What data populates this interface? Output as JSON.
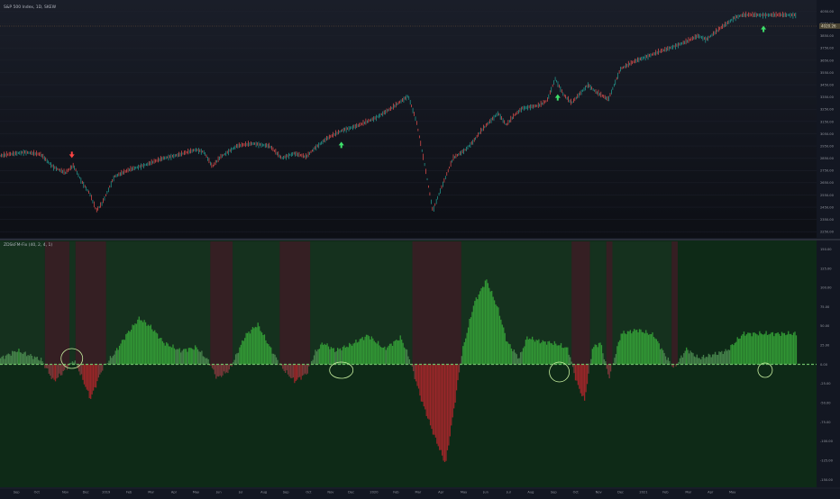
{
  "price_pane": {
    "title": "S&P 500 Index, 1D, SKEW",
    "last_value_label": "4020.26",
    "y_ticks": [
      {
        "v": 4050,
        "label": "4050.00"
      },
      {
        "v": 3950,
        "label": "3950.00"
      },
      {
        "v": 3850,
        "label": "3850.00"
      },
      {
        "v": 3750,
        "label": "3750.00"
      },
      {
        "v": 3650,
        "label": "3650.00"
      },
      {
        "v": 3550,
        "label": "3550.00"
      },
      {
        "v": 3450,
        "label": "3450.00"
      },
      {
        "v": 3350,
        "label": "3350.00"
      },
      {
        "v": 3250,
        "label": "3250.00"
      },
      {
        "v": 3150,
        "label": "3150.00"
      },
      {
        "v": 3050,
        "label": "3050.00"
      },
      {
        "v": 2950,
        "label": "2950.00"
      },
      {
        "v": 2850,
        "label": "2850.00"
      },
      {
        "v": 2750,
        "label": "2750.00"
      },
      {
        "v": 2650,
        "label": "2650.00"
      },
      {
        "v": 2550,
        "label": "2550.00"
      },
      {
        "v": 2450,
        "label": "2450.00"
      },
      {
        "v": 2350,
        "label": "2350.00"
      },
      {
        "v": 2250,
        "label": "2250.00"
      }
    ]
  },
  "indicator_pane": {
    "title": "ZDSkFM-Fix (40, 2, 4, 1)",
    "y_ticks": [
      {
        "v": 150,
        "label": "150.00"
      },
      {
        "v": 125,
        "label": "125.00"
      },
      {
        "v": 100,
        "label": "100.00"
      },
      {
        "v": 75,
        "label": "75.00"
      },
      {
        "v": 50,
        "label": "50.00"
      },
      {
        "v": 25,
        "label": "25.00"
      },
      {
        "v": 0,
        "label": "0.00"
      },
      {
        "v": -25,
        "label": "-25.00"
      },
      {
        "v": -50,
        "label": "-50.00"
      },
      {
        "v": -75,
        "label": "-75.00"
      },
      {
        "v": -100,
        "label": "-100.00"
      },
      {
        "v": -125,
        "label": "-125.00"
      },
      {
        "v": -150,
        "label": "-150.00"
      }
    ]
  },
  "x_axis_labels": [
    {
      "label": "Sep",
      "t": 0.02
    },
    {
      "label": "Oct",
      "t": 0.045
    },
    {
      "label": "Nov",
      "t": 0.08
    },
    {
      "label": "Dec",
      "t": 0.105
    },
    {
      "label": "2019",
      "t": 0.13
    },
    {
      "label": "Feb",
      "t": 0.158
    },
    {
      "label": "Mar",
      "t": 0.185
    },
    {
      "label": "Apr",
      "t": 0.213
    },
    {
      "label": "May",
      "t": 0.24
    },
    {
      "label": "Jun",
      "t": 0.268
    },
    {
      "label": "Jul",
      "t": 0.295
    },
    {
      "label": "Aug",
      "t": 0.323
    },
    {
      "label": "Sep",
      "t": 0.35
    },
    {
      "label": "Oct",
      "t": 0.378
    },
    {
      "label": "Nov",
      "t": 0.405
    },
    {
      "label": "Dec",
      "t": 0.43
    },
    {
      "label": "2020",
      "t": 0.458
    },
    {
      "label": "Feb",
      "t": 0.485
    },
    {
      "label": "Mar",
      "t": 0.512
    },
    {
      "label": "Apr",
      "t": 0.54
    },
    {
      "label": "May",
      "t": 0.568
    },
    {
      "label": "Jun",
      "t": 0.595
    },
    {
      "label": "Jul",
      "t": 0.623
    },
    {
      "label": "Aug",
      "t": 0.65
    },
    {
      "label": "Sep",
      "t": 0.678
    },
    {
      "label": "Oct",
      "t": 0.705
    },
    {
      "label": "Nov",
      "t": 0.733
    },
    {
      "label": "Dec",
      "t": 0.76
    },
    {
      "label": "2021",
      "t": 0.788
    },
    {
      "label": "Feb",
      "t": 0.815
    },
    {
      "label": "Mar",
      "t": 0.843
    },
    {
      "label": "Apr",
      "t": 0.87
    },
    {
      "label": "May",
      "t": 0.897
    }
  ],
  "chart_data": [
    {
      "type": "line",
      "title": "S&P 500 Index, 1D, SKEW",
      "ylim": [
        2200,
        4120
      ],
      "x": [
        0,
        0.03,
        0.05,
        0.065,
        0.08,
        0.09,
        0.1,
        0.11,
        0.118,
        0.125,
        0.14,
        0.16,
        0.18,
        0.2,
        0.22,
        0.24,
        0.25,
        0.26,
        0.27,
        0.29,
        0.31,
        0.33,
        0.345,
        0.36,
        0.375,
        0.385,
        0.4,
        0.42,
        0.44,
        0.46,
        0.48,
        0.5,
        0.51,
        0.52,
        0.53,
        0.54,
        0.555,
        0.57,
        0.58,
        0.59,
        0.6,
        0.61,
        0.62,
        0.63,
        0.64,
        0.66,
        0.67,
        0.68,
        0.69,
        0.7,
        0.72,
        0.73,
        0.745,
        0.76,
        0.78,
        0.8,
        0.82,
        0.84,
        0.855,
        0.865,
        0.88,
        0.9,
        0.91
      ],
      "values": [
        2870,
        2900,
        2880,
        2780,
        2730,
        2790,
        2660,
        2560,
        2420,
        2480,
        2700,
        2760,
        2800,
        2850,
        2880,
        2920,
        2900,
        2780,
        2860,
        2950,
        2970,
        2950,
        2850,
        2890,
        2860,
        2930,
        3010,
        3080,
        3120,
        3180,
        3260,
        3360,
        3150,
        2800,
        2420,
        2600,
        2850,
        2920,
        2990,
        3080,
        3150,
        3220,
        3120,
        3200,
        3260,
        3280,
        3320,
        3500,
        3370,
        3300,
        3450,
        3390,
        3330,
        3580,
        3650,
        3700,
        3750,
        3800,
        3850,
        3820,
        3900,
        4000,
        4020
      ]
    },
    {
      "type": "bar",
      "title": "ZDSkFM-Fix (40, 2, 4, 1)",
      "ylim": [
        -160,
        160
      ],
      "x": [
        0,
        0.02,
        0.05,
        0.065,
        0.075,
        0.09,
        0.1,
        0.11,
        0.125,
        0.14,
        0.155,
        0.17,
        0.185,
        0.2,
        0.22,
        0.24,
        0.255,
        0.265,
        0.28,
        0.3,
        0.315,
        0.33,
        0.345,
        0.36,
        0.375,
        0.385,
        0.395,
        0.41,
        0.43,
        0.45,
        0.47,
        0.49,
        0.5,
        0.515,
        0.53,
        0.545,
        0.555,
        0.565,
        0.58,
        0.595,
        0.61,
        0.62,
        0.635,
        0.645,
        0.66,
        0.675,
        0.685,
        0.695,
        0.705,
        0.715,
        0.725,
        0.735,
        0.745,
        0.76,
        0.78,
        0.8,
        0.815,
        0.825,
        0.84,
        0.855,
        0.87,
        0.89,
        0.905,
        0.91
      ],
      "values": [
        8,
        18,
        6,
        -22,
        -12,
        6,
        -18,
        -45,
        -5,
        15,
        40,
        60,
        48,
        28,
        18,
        22,
        4,
        -18,
        -8,
        38,
        52,
        22,
        -5,
        -22,
        -12,
        15,
        28,
        18,
        26,
        38,
        20,
        35,
        10,
        -45,
        -90,
        -130,
        -60,
        15,
        80,
        110,
        70,
        30,
        8,
        35,
        30,
        28,
        25,
        20,
        -22,
        -48,
        22,
        28,
        -18,
        40,
        45,
        38,
        10,
        -5,
        20,
        8,
        12,
        18,
        35,
        40
      ]
    }
  ]
}
